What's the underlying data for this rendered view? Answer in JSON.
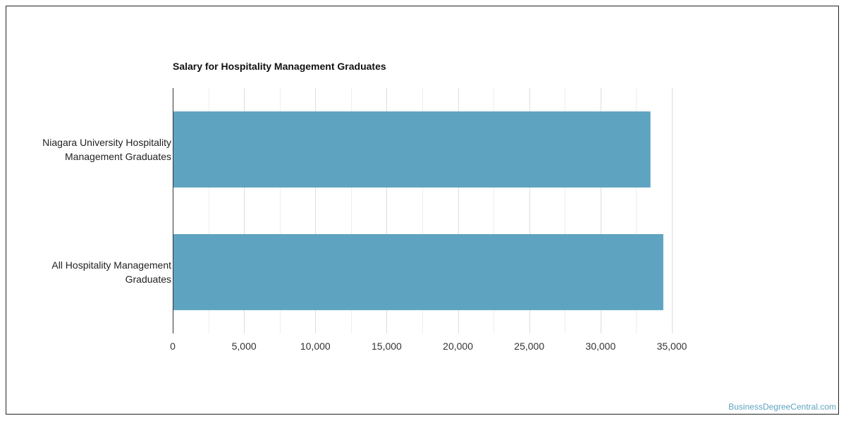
{
  "chart_data": {
    "type": "bar",
    "orientation": "horizontal",
    "title": "Salary for Hospitality Management Graduates",
    "categories": [
      [
        "Niagara University Hospitality",
        "Management Graduates"
      ],
      [
        "All Hospitality Management",
        "Graduates"
      ]
    ],
    "values": [
      33500,
      34400
    ],
    "xlim": [
      0,
      35000
    ],
    "xticks": [
      0,
      5000,
      10000,
      15000,
      20000,
      25000,
      30000,
      35000
    ],
    "xtick_labels": [
      "0",
      "5,000",
      "10,000",
      "15,000",
      "20,000",
      "25,000",
      "30,000",
      "35,000"
    ],
    "grid": true,
    "bar_color": "#5ea3c0",
    "grid_color": "#dddddd",
    "axis_color": "#333333"
  },
  "footer": {
    "watermark": "BusinessDegreeCentral.com"
  }
}
